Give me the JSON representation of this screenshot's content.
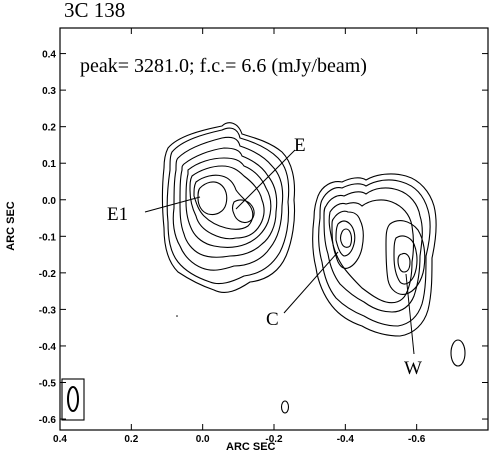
{
  "figure": {
    "source_name": "3C 138",
    "annotation": "peak= 3281.0; f.c.= 6.6 (mJy/beam)",
    "xlabel": "ARC SEC",
    "ylabel": "ARC SEC",
    "xlim": [
      0.4,
      -0.8
    ],
    "ylim": [
      -0.63,
      0.47
    ],
    "x_ticks": [
      {
        "value": 0.4,
        "label": "0.4"
      },
      {
        "value": 0.2,
        "label": "0.2"
      },
      {
        "value": 0.0,
        "label": "0.0"
      },
      {
        "value": -0.2,
        "label": "-0.2"
      },
      {
        "value": -0.4,
        "label": "-0.4"
      },
      {
        "value": -0.6,
        "label": "-0.6"
      }
    ],
    "y_ticks": [
      {
        "value": 0.4,
        "label": "0.4"
      },
      {
        "value": 0.3,
        "label": "0.3"
      },
      {
        "value": 0.2,
        "label": "0.2"
      },
      {
        "value": 0.1,
        "label": "0.1"
      },
      {
        "value": 0.0,
        "label": "0.0"
      },
      {
        "value": -0.1,
        "label": "-0.1"
      },
      {
        "value": -0.2,
        "label": "-0.2"
      },
      {
        "value": -0.3,
        "label": "-0.3"
      },
      {
        "value": -0.4,
        "label": "-0.4"
      },
      {
        "value": -0.5,
        "label": "-0.5"
      },
      {
        "value": -0.6,
        "label": "-0.6"
      }
    ],
    "component_labels": [
      {
        "id": "E1",
        "text": "E1"
      },
      {
        "id": "E",
        "text": "E"
      },
      {
        "id": "C",
        "text": "C"
      },
      {
        "id": "W",
        "text": "W"
      }
    ],
    "colors": {
      "ink": "#000000",
      "background": "#ffffff"
    }
  }
}
